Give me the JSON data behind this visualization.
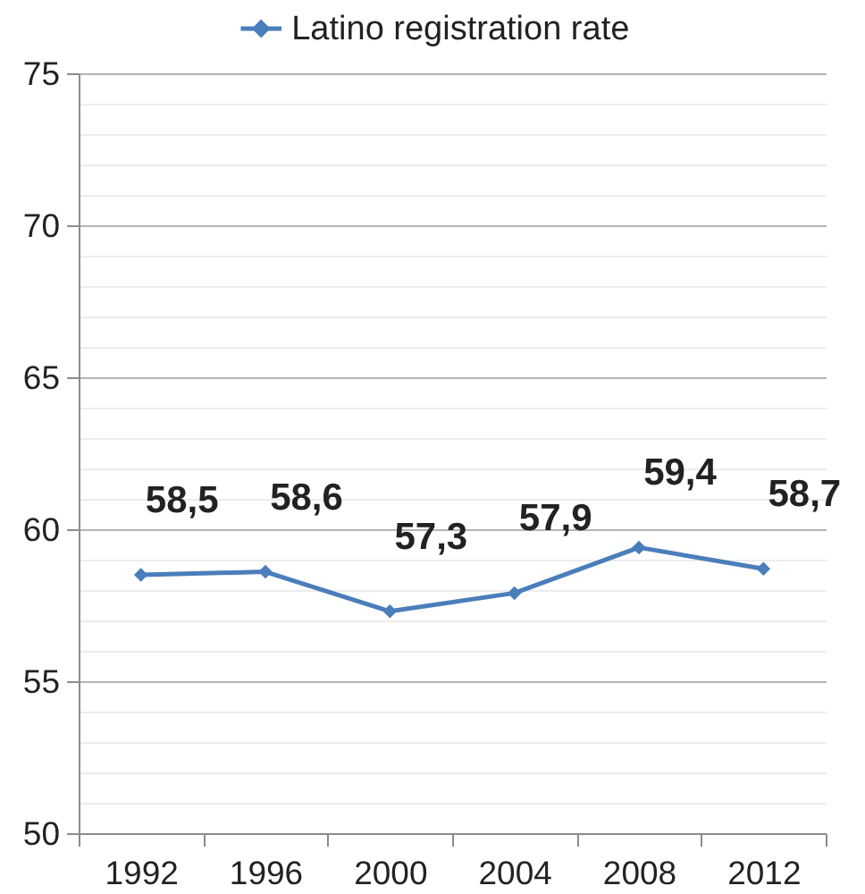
{
  "chart_data": {
    "type": "line",
    "categories": [
      "1992",
      "1996",
      "2000",
      "2004",
      "2008",
      "2012"
    ],
    "series": [
      {
        "name": "Latino registration rate",
        "color": "#4a7ebb",
        "values": [
          58.5,
          58.6,
          57.3,
          57.9,
          59.4,
          58.7
        ],
        "value_labels": [
          "58,5",
          "58,6",
          "57,3",
          "57,9",
          "59,4",
          "58,7"
        ]
      }
    ],
    "ylim": [
      50,
      75
    ],
    "yticks": [
      50,
      {
        "value": 51,
        "label": null
      },
      {
        "value": 52,
        "label": null
      },
      {
        "value": 53,
        "label": null
      },
      {
        "value": 54,
        "label": null
      },
      55,
      {
        "value": 56,
        "label": null
      },
      {
        "value": 57,
        "label": null
      },
      {
        "value": 58,
        "label": null
      },
      {
        "value": 59,
        "label": null
      },
      60,
      {
        "value": 61,
        "label": null
      },
      {
        "value": 62,
        "label": null
      },
      {
        "value": 63,
        "label": null
      },
      {
        "value": 64,
        "label": null
      },
      65,
      {
        "value": 66,
        "label": null
      },
      {
        "value": 67,
        "label": null
      },
      {
        "value": 68,
        "label": null
      },
      {
        "value": 69,
        "label": null
      },
      70,
      {
        "value": 71,
        "label": null
      },
      {
        "value": 72,
        "label": null
      },
      {
        "value": 73,
        "label": null
      },
      {
        "value": 74,
        "label": null
      },
      75
    ],
    "grid": "y",
    "legend": "top",
    "marker": "diamond",
    "line_style": "solid"
  }
}
